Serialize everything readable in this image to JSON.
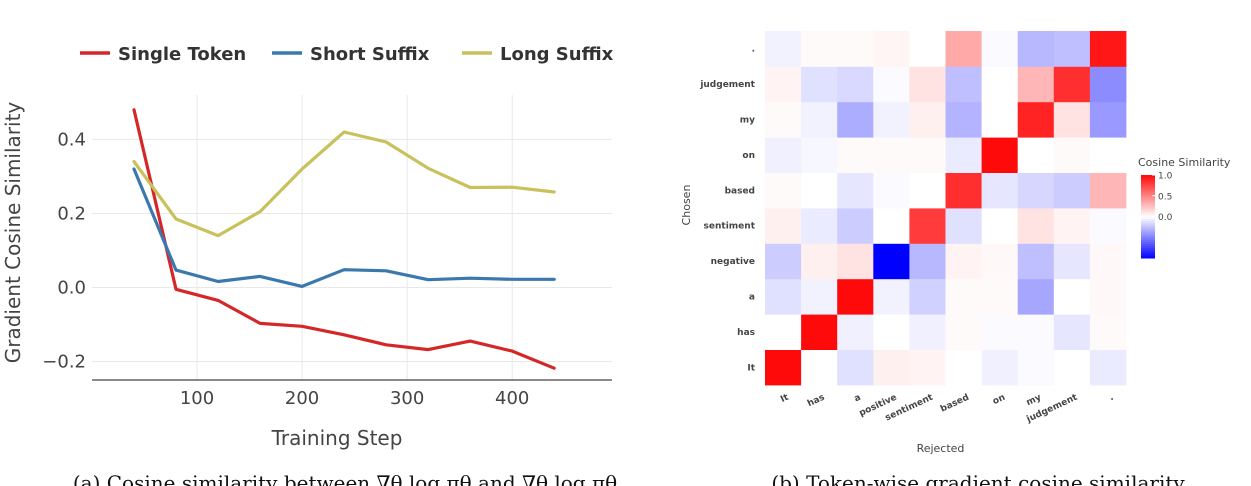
{
  "chart_data": [
    {
      "type": "line",
      "xlabel": "Training Step",
      "ylabel": "Gradient Cosine Similarity",
      "xlim": [
        0,
        495
      ],
      "ylim": [
        -0.25,
        0.52
      ],
      "xticks": [
        100,
        200,
        300,
        400
      ],
      "xtick_labels": [
        "100",
        "200",
        "300",
        "400"
      ],
      "yticks": [
        -0.2,
        0.0,
        0.2,
        0.4
      ],
      "ytick_labels": [
        "−0.2",
        "0.0",
        "0.2",
        "0.4"
      ],
      "grid": true,
      "legend_position": "top",
      "x": [
        40,
        80,
        120,
        160,
        200,
        240,
        280,
        320,
        360,
        400,
        440
      ],
      "series": [
        {
          "name": "Single Token",
          "color": "#d62728",
          "values": [
            0.48,
            -0.005,
            -0.035,
            -0.097,
            -0.105,
            -0.128,
            -0.155,
            -0.168,
            -0.145,
            -0.172,
            -0.218
          ]
        },
        {
          "name": "Short Suffix",
          "color": "#3a78ae",
          "values": [
            0.32,
            0.047,
            0.016,
            0.03,
            0.003,
            0.048,
            0.045,
            0.021,
            0.025,
            0.022,
            0.022
          ]
        },
        {
          "name": "Long Suffix",
          "color": "#c9c15c",
          "values": [
            0.34,
            0.185,
            0.14,
            0.205,
            0.32,
            0.42,
            0.393,
            0.322,
            0.27,
            0.271,
            0.258
          ]
        }
      ],
      "caption": "(a) Cosine similarity between ∇θ log πθ and ∇θ log πθ"
    },
    {
      "type": "heatmap",
      "xlabel": "Rejected",
      "ylabel": "Chosen",
      "x_categories": [
        "It",
        "has",
        "a",
        "positive",
        "sentiment",
        "based",
        "on",
        "my",
        "judgement",
        "."
      ],
      "y_categories": [
        "It",
        "has",
        "a",
        "negative",
        "sentiment",
        "based",
        "on",
        "my",
        "judgement",
        "."
      ],
      "values": [
        [
          1.0,
          0.0,
          -0.12,
          0.06,
          0.05,
          0.0,
          -0.06,
          -0.02,
          0.0,
          -0.08
        ],
        [
          0.0,
          1.0,
          -0.06,
          0.0,
          -0.06,
          0.02,
          -0.02,
          -0.02,
          -0.1,
          0.02
        ],
        [
          -0.12,
          -0.05,
          1.0,
          -0.05,
          -0.18,
          0.02,
          0.02,
          -0.35,
          0.0,
          0.03
        ],
        [
          -0.2,
          0.06,
          0.12,
          -1.0,
          -0.28,
          0.05,
          0.03,
          -0.25,
          -0.1,
          0.03
        ],
        [
          0.06,
          -0.08,
          -0.2,
          0.0,
          0.8,
          -0.12,
          0.0,
          0.12,
          0.05,
          -0.02
        ],
        [
          0.02,
          0.0,
          -0.1,
          -0.02,
          0.0,
          0.85,
          -0.1,
          -0.16,
          -0.2,
          0.3
        ],
        [
          -0.06,
          -0.03,
          0.02,
          0.02,
          0.02,
          -0.08,
          1.0,
          0.0,
          0.02,
          0.0
        ],
        [
          0.02,
          -0.05,
          -0.32,
          -0.05,
          0.06,
          -0.3,
          0.0,
          0.9,
          0.12,
          -0.4
        ],
        [
          0.05,
          -0.12,
          -0.15,
          -0.02,
          0.12,
          -0.25,
          0.0,
          0.3,
          0.85,
          -0.45
        ],
        [
          -0.05,
          0.02,
          0.02,
          0.04,
          0.0,
          0.35,
          -0.02,
          -0.28,
          -0.25,
          0.95
        ]
      ],
      "colorbar_title": "Cosine Similarity",
      "colorbar_ticks": [
        1.0,
        0.5,
        0.0
      ],
      "colorbar_tick_labels": [
        "1.0",
        "0.5",
        "0.0"
      ],
      "vmin": -1.0,
      "vmax": 1.0,
      "caption": "(b) Token-wise gradient cosine similarity"
    }
  ]
}
